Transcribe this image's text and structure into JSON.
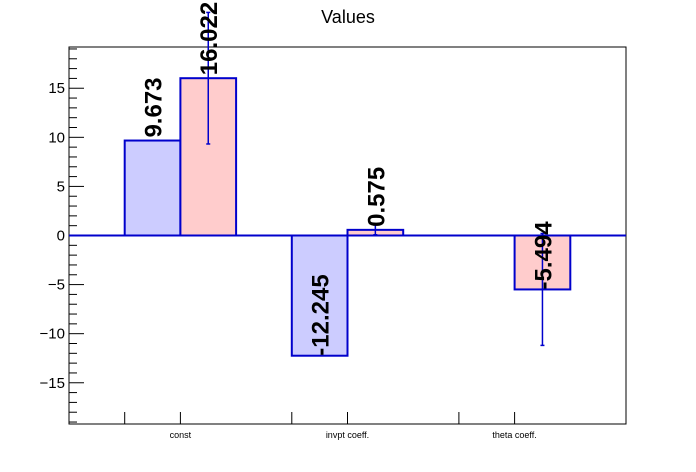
{
  "chart_data": {
    "type": "bar",
    "title": "Values",
    "categories": [
      "const",
      "invpt coeff.",
      "theta coeff."
    ],
    "series": [
      {
        "values": [
          9.673,
          -12.245,
          null
        ],
        "labels": [
          "9.673",
          "-12.245",
          ""
        ],
        "errors": [
          null,
          null,
          null
        ],
        "fill": "#ccccff",
        "stroke": "#0000cc"
      },
      {
        "values": [
          16.022,
          0.575,
          -5.494
        ],
        "labels": [
          "16.022",
          "0.575",
          "-5.494"
        ],
        "errors": [
          6.7,
          0.5,
          5.7
        ],
        "fill": "#ffcccc",
        "stroke": "#0000cc"
      }
    ],
    "ylim": [
      -19.2,
      19.2
    ],
    "yticks": [
      -15,
      -10,
      -5,
      0,
      5,
      10,
      15
    ],
    "ytick_labels": [
      "−15",
      "−10",
      "−5",
      "0",
      "5",
      "10",
      "15"
    ],
    "zero_line_color": "#0000cc",
    "grid": false,
    "legend": "none"
  }
}
